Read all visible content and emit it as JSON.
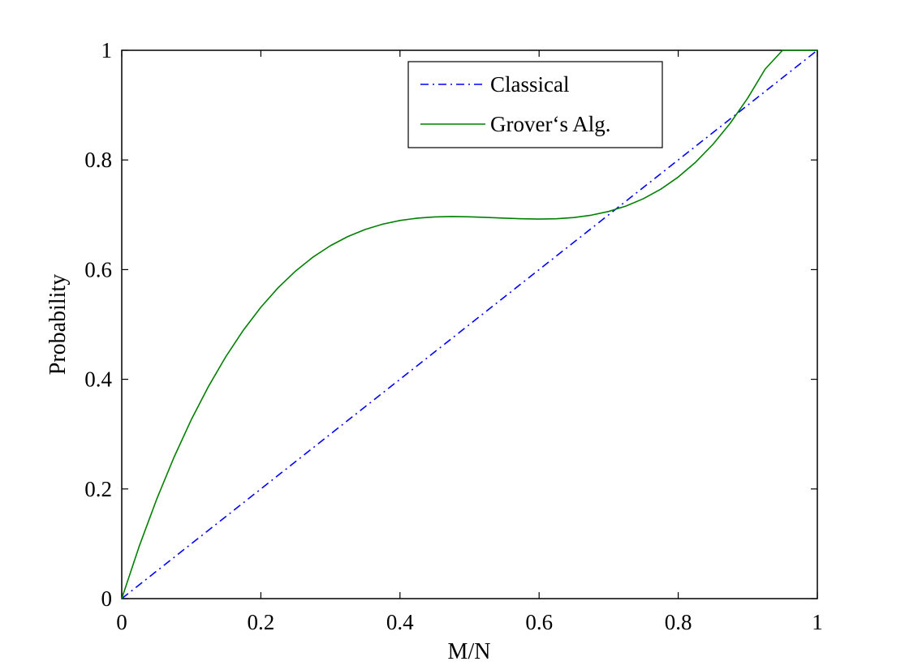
{
  "chart_data": {
    "type": "line",
    "title": "",
    "xlabel": "M/N",
    "ylabel": "Probability",
    "xlim": [
      0,
      1
    ],
    "ylim": [
      0,
      1
    ],
    "grid": false,
    "legend_position": "top-center",
    "x_ticks": [
      0,
      0.2,
      0.4,
      0.6,
      0.8,
      1
    ],
    "x_tick_labels": [
      "0",
      "0.2",
      "0.4",
      "0.6",
      "0.8",
      "1"
    ],
    "y_ticks": [
      0,
      0.2,
      0.4,
      0.6,
      0.8,
      1
    ],
    "y_tick_labels": [
      "0",
      "0.2",
      "0.4",
      "0.6",
      "0.8",
      "1"
    ],
    "x": [
      0,
      0.025,
      0.05,
      0.075,
      0.1,
      0.125,
      0.15,
      0.175,
      0.2,
      0.225,
      0.25,
      0.275,
      0.3,
      0.325,
      0.35,
      0.375,
      0.4,
      0.425,
      0.45,
      0.475,
      0.5,
      0.525,
      0.55,
      0.575,
      0.6,
      0.625,
      0.65,
      0.675,
      0.7,
      0.725,
      0.75,
      0.775,
      0.8,
      0.825,
      0.85,
      0.875,
      0.9,
      0.925,
      0.95,
      0.975,
      1
    ],
    "series": [
      {
        "name": "Classical",
        "style": "dash-dot",
        "color": "#0000ff",
        "values": [
          0,
          0.025,
          0.05,
          0.075,
          0.1,
          0.125,
          0.15,
          0.175,
          0.2,
          0.225,
          0.25,
          0.275,
          0.3,
          0.325,
          0.35,
          0.375,
          0.4,
          0.425,
          0.45,
          0.475,
          0.5,
          0.525,
          0.55,
          0.575,
          0.6,
          0.625,
          0.65,
          0.675,
          0.7,
          0.725,
          0.75,
          0.775,
          0.8,
          0.825,
          0.85,
          0.875,
          0.9,
          0.925,
          0.95,
          0.975,
          1
        ]
      },
      {
        "name": "Grover‘s Alg.",
        "style": "solid",
        "color": "#008000",
        "values": [
          0,
          0.0951,
          0.1805,
          0.2574,
          0.3264,
          0.3877,
          0.4421,
          0.4899,
          0.5314,
          0.5672,
          0.5975,
          0.6229,
          0.6437,
          0.6603,
          0.6733,
          0.6829,
          0.6896,
          0.6939,
          0.6961,
          0.6968,
          0.6963,
          0.6952,
          0.6939,
          0.6927,
          0.6922,
          0.6928,
          0.695,
          0.6993,
          0.7061,
          0.716,
          0.7294,
          0.7468,
          0.7688,
          0.7959,
          0.8286,
          0.8674,
          0.913,
          0.9658,
          1.0,
          1.0,
          1.0
        ]
      }
    ]
  }
}
